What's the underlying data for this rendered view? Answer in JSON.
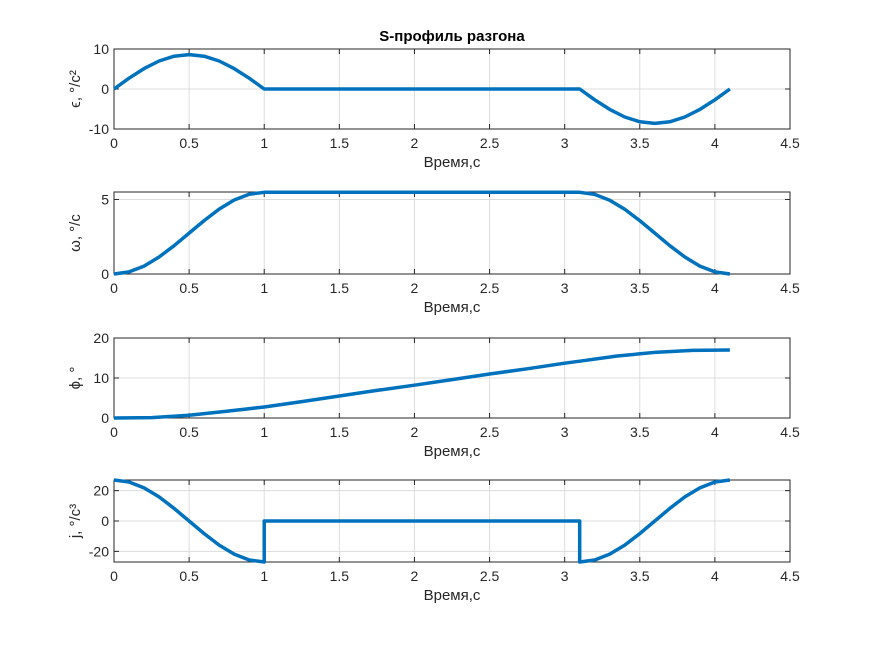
{
  "chart_data": [
    {
      "type": "line",
      "title": "S-профиль разгона",
      "xlabel": "Время,с",
      "ylabel": "ϵ, °/c²",
      "xlim": [
        0,
        4.5
      ],
      "ylim": [
        -10,
        10
      ],
      "xticks": [
        0,
        0.5,
        1,
        1.5,
        2,
        2.5,
        3,
        3.5,
        4,
        4.5
      ],
      "xtick_labels": [
        "0",
        "0.5",
        "1",
        "1.5",
        "2",
        "2.5",
        "3",
        "3.5",
        "4",
        "4.5"
      ],
      "yticks": [
        -10,
        0,
        10
      ],
      "ytick_labels": [
        "-10",
        "0",
        "10"
      ],
      "grid": true,
      "series": [
        {
          "color": "#0072BD",
          "x": [
            0,
            0.1,
            0.2,
            0.3,
            0.4,
            0.5,
            0.6,
            0.7,
            0.8,
            0.9,
            1.0,
            1.5,
            2.0,
            2.5,
            3.0,
            3.1,
            3.2,
            3.3,
            3.4,
            3.5,
            3.6,
            3.7,
            3.8,
            3.9,
            4.0,
            4.1
          ],
          "y": [
            0,
            2.7,
            5.1,
            7.0,
            8.2,
            8.6,
            8.2,
            7.0,
            5.1,
            2.7,
            0,
            0,
            0,
            0,
            0,
            0,
            -2.7,
            -5.1,
            -7.0,
            -8.2,
            -8.6,
            -8.2,
            -7.0,
            -5.1,
            -2.7,
            0
          ]
        }
      ]
    },
    {
      "type": "line",
      "xlabel": "Время,с",
      "ylabel": "ω, °/c",
      "xlim": [
        0,
        4.5
      ],
      "ylim": [
        0,
        5.5
      ],
      "xticks": [
        0,
        0.5,
        1,
        1.5,
        2,
        2.5,
        3,
        3.5,
        4,
        4.5
      ],
      "xtick_labels": [
        "0",
        "0.5",
        "1",
        "1.5",
        "2",
        "2.5",
        "3",
        "3.5",
        "4",
        "4.5"
      ],
      "yticks": [
        0,
        5
      ],
      "ytick_labels": [
        "0",
        "5"
      ],
      "grid": true,
      "series": [
        {
          "color": "#0072BD",
          "x": [
            0,
            0.1,
            0.2,
            0.3,
            0.4,
            0.5,
            0.6,
            0.7,
            0.8,
            0.9,
            1.0,
            1.5,
            2.0,
            2.5,
            3.0,
            3.1,
            3.2,
            3.3,
            3.4,
            3.5,
            3.6,
            3.7,
            3.8,
            3.9,
            4.0,
            4.1
          ],
          "y": [
            0,
            0.14,
            0.53,
            1.14,
            1.9,
            2.74,
            3.58,
            4.35,
            4.96,
            5.35,
            5.48,
            5.48,
            5.48,
            5.48,
            5.48,
            5.48,
            5.34,
            4.95,
            4.34,
            3.58,
            2.74,
            1.9,
            1.14,
            0.53,
            0.14,
            0
          ]
        }
      ]
    },
    {
      "type": "line",
      "xlabel": "Время,с",
      "ylabel": "ϕ, °",
      "xlim": [
        0,
        4.5
      ],
      "ylim": [
        0,
        20
      ],
      "xticks": [
        0,
        0.5,
        1,
        1.5,
        2,
        2.5,
        3,
        3.5,
        4,
        4.5
      ],
      "xtick_labels": [
        "0",
        "0.5",
        "1",
        "1.5",
        "2",
        "2.5",
        "3",
        "3.5",
        "4",
        "4.5"
      ],
      "yticks": [
        0,
        10,
        20
      ],
      "ytick_labels": [
        "0",
        "10",
        "20"
      ],
      "grid": true,
      "series": [
        {
          "color": "#0072BD",
          "x": [
            0,
            0.25,
            0.5,
            0.75,
            1.0,
            1.25,
            1.5,
            1.75,
            2.0,
            2.25,
            2.5,
            2.75,
            3.0,
            3.1,
            3.35,
            3.6,
            3.85,
            4.1
          ],
          "y": [
            0,
            0.1,
            0.7,
            1.7,
            2.74,
            4.1,
            5.5,
            6.9,
            8.2,
            9.6,
            11.0,
            12.3,
            13.7,
            14.2,
            15.5,
            16.4,
            16.9,
            17.0
          ]
        }
      ]
    },
    {
      "type": "line",
      "xlabel": "Время,с",
      "ylabel": "j, °/c³",
      "xlim": [
        0,
        4.5
      ],
      "ylim": [
        -27,
        27
      ],
      "xticks": [
        0,
        0.5,
        1,
        1.5,
        2,
        2.5,
        3,
        3.5,
        4,
        4.5
      ],
      "xtick_labels": [
        "0",
        "0.5",
        "1",
        "1.5",
        "2",
        "2.5",
        "3",
        "3.5",
        "4",
        "4.5"
      ],
      "yticks": [
        -20,
        0,
        20
      ],
      "ytick_labels": [
        "-20",
        "0",
        "20"
      ],
      "grid": true,
      "series": [
        {
          "color": "#0072BD",
          "x": [
            0,
            0.1,
            0.2,
            0.3,
            0.4,
            0.5,
            0.6,
            0.7,
            0.8,
            0.9,
            1.0,
            1.0,
            1.5,
            2.0,
            2.5,
            3.1,
            3.1,
            3.2,
            3.3,
            3.4,
            3.5,
            3.6,
            3.7,
            3.8,
            3.9,
            4.0,
            4.1
          ],
          "y": [
            27,
            25.7,
            21.8,
            15.9,
            8.3,
            0,
            -8.3,
            -15.9,
            -21.8,
            -25.7,
            -27,
            0,
            0,
            0,
            0,
            0,
            -27,
            -25.7,
            -21.8,
            -15.9,
            -8.3,
            0,
            8.3,
            15.9,
            21.8,
            25.7,
            27
          ]
        }
      ]
    }
  ]
}
